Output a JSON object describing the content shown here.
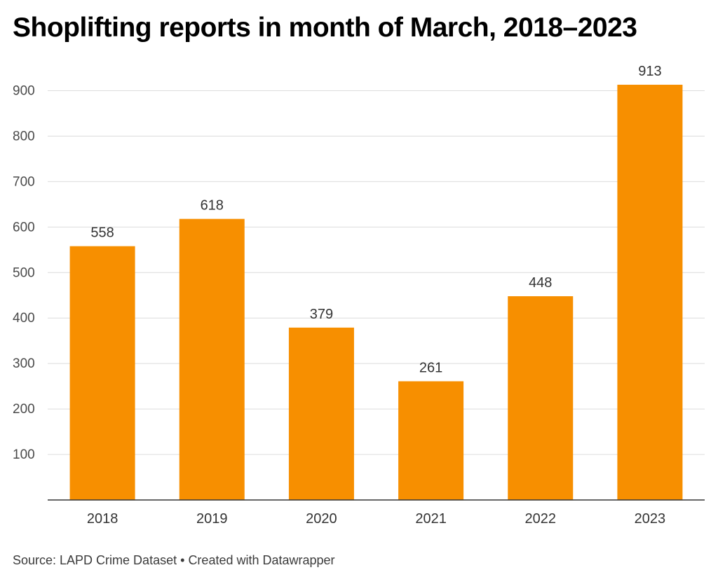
{
  "chart_data": {
    "type": "bar",
    "title": "Shoplifting reports in month of March, 2018–2023",
    "xlabel": "",
    "ylabel": "",
    "categories": [
      "2018",
      "2019",
      "2020",
      "2021",
      "2022",
      "2023"
    ],
    "values": [
      558,
      618,
      379,
      261,
      448,
      913
    ],
    "ylim": [
      0,
      900
    ],
    "yticks": [
      100,
      200,
      300,
      400,
      500,
      600,
      700,
      800,
      900
    ],
    "grid": true,
    "bar_color": "#f78f00",
    "data_labels": true
  },
  "footer": {
    "source": "Source: LAPD Crime Dataset",
    "separator": "•",
    "credit": "Created with Datawrapper"
  }
}
